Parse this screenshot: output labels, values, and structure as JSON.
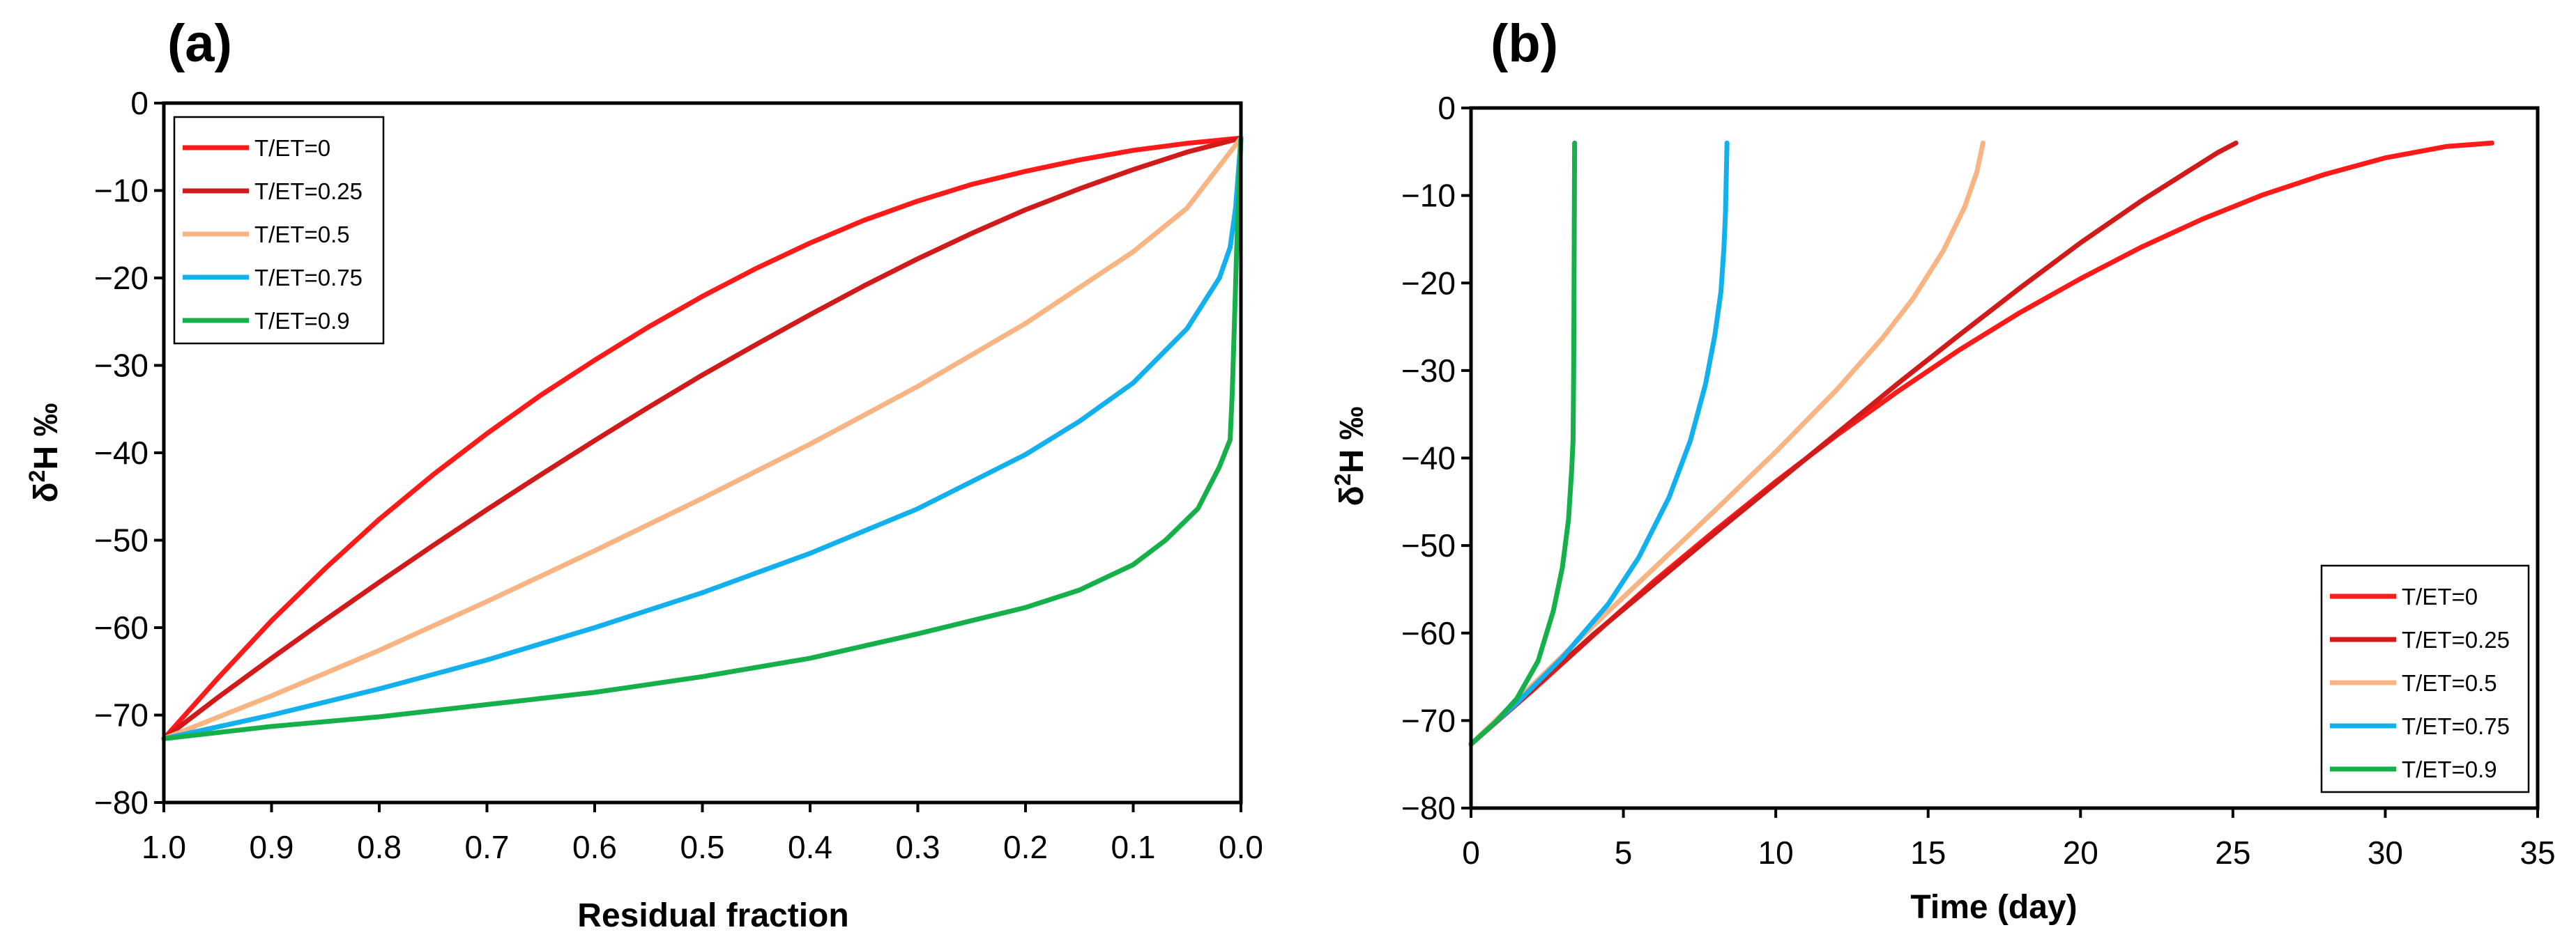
{
  "colors": {
    "T/ET=0": "#ff1a1a",
    "T/ET=0.25": "#d11a1a",
    "T/ET=0.5": "#f9b483",
    "T/ET=0.75": "#12b0ec",
    "T/ET=0.9": "#16b04a"
  },
  "chart_data": [
    {
      "panel_label": "(a)",
      "type": "line",
      "xlabel": "Residual fraction",
      "ylabel": "δ²H ‰",
      "ylabel_parts": {
        "delta": "δ",
        "sup": "2",
        "rest": "H ‰"
      },
      "xlim": [
        1.0,
        0.0
      ],
      "ylim": [
        -80,
        0
      ],
      "x_reversed": true,
      "x_ticks": [
        1.0,
        0.9,
        0.8,
        0.7,
        0.6,
        0.5,
        0.4,
        0.3,
        0.2,
        0.1,
        0.0
      ],
      "x_tick_labels": [
        "1.0",
        "0.9",
        "0.8",
        "0.7",
        "0.6",
        "0.5",
        "0.4",
        "0.3",
        "0.2",
        "0.1",
        "0.0"
      ],
      "y_ticks": [
        0,
        -10,
        -20,
        -30,
        -40,
        -50,
        -60,
        -70,
        -80
      ],
      "y_tick_labels": [
        "0",
        "−10",
        "−20",
        "−30",
        "−40",
        "−50",
        "−60",
        "−70",
        "−80"
      ],
      "legend_position": "top-left",
      "series": [
        {
          "name": "T/ET=0",
          "points": [
            [
              1.0,
              -72.7
            ],
            [
              0.95,
              -65.8
            ],
            [
              0.9,
              -59.2
            ],
            [
              0.85,
              -53.2
            ],
            [
              0.8,
              -47.6
            ],
            [
              0.75,
              -42.5
            ],
            [
              0.7,
              -37.8
            ],
            [
              0.65,
              -33.4
            ],
            [
              0.6,
              -29.4
            ],
            [
              0.55,
              -25.6
            ],
            [
              0.5,
              -22.1
            ],
            [
              0.45,
              -18.9
            ],
            [
              0.4,
              -16.0
            ],
            [
              0.35,
              -13.4
            ],
            [
              0.3,
              -11.2
            ],
            [
              0.25,
              -9.3
            ],
            [
              0.2,
              -7.8
            ],
            [
              0.15,
              -6.5
            ],
            [
              0.1,
              -5.4
            ],
            [
              0.05,
              -4.6
            ],
            [
              0.0,
              -4.0
            ]
          ]
        },
        {
          "name": "T/ET=0.25",
          "points": [
            [
              1.0,
              -72.7
            ],
            [
              0.95,
              -68.0
            ],
            [
              0.9,
              -63.5
            ],
            [
              0.85,
              -59.1
            ],
            [
              0.8,
              -54.8
            ],
            [
              0.75,
              -50.6
            ],
            [
              0.7,
              -46.5
            ],
            [
              0.65,
              -42.5
            ],
            [
              0.6,
              -38.6
            ],
            [
              0.55,
              -34.8
            ],
            [
              0.5,
              -31.1
            ],
            [
              0.45,
              -27.6
            ],
            [
              0.4,
              -24.2
            ],
            [
              0.35,
              -20.9
            ],
            [
              0.3,
              -17.8
            ],
            [
              0.25,
              -14.9
            ],
            [
              0.2,
              -12.2
            ],
            [
              0.15,
              -9.8
            ],
            [
              0.1,
              -7.6
            ],
            [
              0.05,
              -5.6
            ],
            [
              0.0,
              -4.0
            ]
          ]
        },
        {
          "name": "T/ET=0.5",
          "points": [
            [
              1.0,
              -72.7
            ],
            [
              0.9,
              -67.8
            ],
            [
              0.8,
              -62.6
            ],
            [
              0.7,
              -57.0
            ],
            [
              0.6,
              -51.2
            ],
            [
              0.5,
              -45.2
            ],
            [
              0.4,
              -39.0
            ],
            [
              0.3,
              -32.4
            ],
            [
              0.2,
              -25.2
            ],
            [
              0.1,
              -17.0
            ],
            [
              0.05,
              -12.0
            ],
            [
              0.0,
              -4.0
            ]
          ]
        },
        {
          "name": "T/ET=0.75",
          "points": [
            [
              1.0,
              -72.7
            ],
            [
              0.9,
              -70.0
            ],
            [
              0.8,
              -67.0
            ],
            [
              0.7,
              -63.7
            ],
            [
              0.6,
              -60.0
            ],
            [
              0.5,
              -56.0
            ],
            [
              0.4,
              -51.5
            ],
            [
              0.3,
              -46.4
            ],
            [
              0.2,
              -40.2
            ],
            [
              0.15,
              -36.4
            ],
            [
              0.1,
              -32.0
            ],
            [
              0.05,
              -25.8
            ],
            [
              0.02,
              -20.0
            ],
            [
              0.01,
              -16.5
            ],
            [
              0.005,
              -12.0
            ],
            [
              0.0,
              -4.0
            ]
          ]
        },
        {
          "name": "T/ET=0.9",
          "points": [
            [
              1.0,
              -72.7
            ],
            [
              0.9,
              -71.3
            ],
            [
              0.8,
              -70.2
            ],
            [
              0.7,
              -68.8
            ],
            [
              0.6,
              -67.4
            ],
            [
              0.5,
              -65.6
            ],
            [
              0.4,
              -63.5
            ],
            [
              0.3,
              -60.7
            ],
            [
              0.2,
              -57.7
            ],
            [
              0.15,
              -55.7
            ],
            [
              0.1,
              -52.8
            ],
            [
              0.07,
              -50.0
            ],
            [
              0.04,
              -46.4
            ],
            [
              0.02,
              -41.6
            ],
            [
              0.01,
              -38.5
            ],
            [
              0.008,
              -33.0
            ],
            [
              0.006,
              -25.0
            ],
            [
              0.004,
              -17.0
            ],
            [
              0.0,
              -4.0
            ]
          ]
        }
      ]
    },
    {
      "panel_label": "(b)",
      "type": "line",
      "xlabel": "Time (day)",
      "ylabel": "δ²H ‰",
      "ylabel_parts": {
        "delta": "δ",
        "sup": "2",
        "rest": "H ‰"
      },
      "xlim": [
        0,
        35
      ],
      "ylim": [
        -80,
        0
      ],
      "x_reversed": false,
      "x_ticks": [
        0,
        5,
        10,
        15,
        20,
        25,
        30,
        35
      ],
      "x_tick_labels": [
        "0",
        "5",
        "10",
        "15",
        "20",
        "25",
        "30",
        "35"
      ],
      "y_ticks": [
        0,
        -10,
        -20,
        -30,
        -40,
        -50,
        -60,
        -70,
        -80
      ],
      "y_tick_labels": [
        "0",
        "−10",
        "−20",
        "−30",
        "−40",
        "−50",
        "−60",
        "−70",
        "−80"
      ],
      "legend_position": "bottom-right",
      "series": [
        {
          "name": "T/ET=0",
          "points": [
            [
              0,
              -72.7
            ],
            [
              2,
              -66.6
            ],
            [
              4,
              -60.3
            ],
            [
              6,
              -54.1
            ],
            [
              8,
              -48.3
            ],
            [
              10,
              -42.7
            ],
            [
              12,
              -37.4
            ],
            [
              14,
              -32.4
            ],
            [
              16,
              -27.7
            ],
            [
              18,
              -23.4
            ],
            [
              20,
              -19.5
            ],
            [
              22,
              -15.9
            ],
            [
              24,
              -12.7
            ],
            [
              26,
              -9.9
            ],
            [
              28,
              -7.6
            ],
            [
              30,
              -5.7
            ],
            [
              32,
              -4.4
            ],
            [
              33.5,
              -4.0
            ]
          ]
        },
        {
          "name": "T/ET=0.25",
          "points": [
            [
              0,
              -72.7
            ],
            [
              2,
              -66.5
            ],
            [
              4,
              -60.2
            ],
            [
              6,
              -54.4
            ],
            [
              8,
              -48.6
            ],
            [
              10,
              -42.9
            ],
            [
              12,
              -37.2
            ],
            [
              14,
              -31.5
            ],
            [
              16,
              -26.0
            ],
            [
              18,
              -20.6
            ],
            [
              20,
              -15.4
            ],
            [
              22,
              -10.6
            ],
            [
              23.5,
              -7.3
            ],
            [
              24.5,
              -5.1
            ],
            [
              25.1,
              -4.0
            ]
          ]
        },
        {
          "name": "T/ET=0.5",
          "points": [
            [
              0,
              -72.7
            ],
            [
              2,
              -66.0
            ],
            [
              4,
              -59.2
            ],
            [
              6,
              -52.6
            ],
            [
              8,
              -46.0
            ],
            [
              10,
              -39.3
            ],
            [
              12,
              -32.2
            ],
            [
              13.5,
              -26.3
            ],
            [
              14.5,
              -21.8
            ],
            [
              15.5,
              -16.3
            ],
            [
              16.2,
              -11.3
            ],
            [
              16.6,
              -7.3
            ],
            [
              16.8,
              -4.0
            ]
          ]
        },
        {
          "name": "T/ET=0.75",
          "points": [
            [
              0,
              -72.7
            ],
            [
              1.5,
              -68.0
            ],
            [
              3,
              -62.8
            ],
            [
              4.5,
              -56.7
            ],
            [
              5.5,
              -51.4
            ],
            [
              6.5,
              -44.5
            ],
            [
              7.2,
              -38.0
            ],
            [
              7.7,
              -31.5
            ],
            [
              8.0,
              -26.0
            ],
            [
              8.2,
              -21.0
            ],
            [
              8.3,
              -16.0
            ],
            [
              8.35,
              -12.0
            ],
            [
              8.4,
              -4.0
            ]
          ]
        },
        {
          "name": "T/ET=0.9",
          "points": [
            [
              0,
              -72.7
            ],
            [
              0.8,
              -70.2
            ],
            [
              1.5,
              -67.5
            ],
            [
              2.2,
              -63.2
            ],
            [
              2.7,
              -57.5
            ],
            [
              3.0,
              -52.5
            ],
            [
              3.2,
              -47.0
            ],
            [
              3.3,
              -41.5
            ],
            [
              3.35,
              -38.0
            ],
            [
              3.37,
              -30.0
            ],
            [
              3.38,
              -20.0
            ],
            [
              3.4,
              -4.0
            ]
          ]
        }
      ]
    }
  ]
}
